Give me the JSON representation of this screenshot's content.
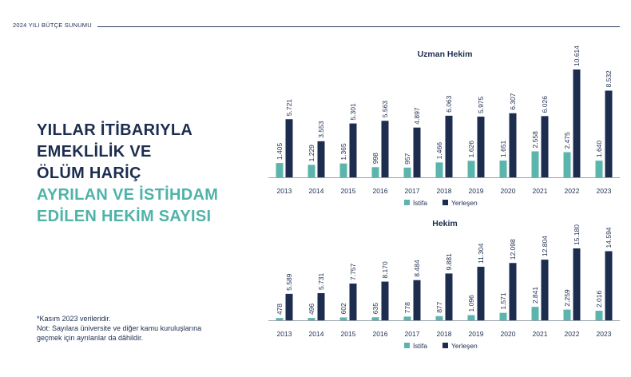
{
  "header": {
    "title": "2024 YILI BÜTÇE SUNUMU"
  },
  "headline": {
    "line1": "YILLAR İTİBARIYLA",
    "line2": "EMEKLİLİK VE",
    "line3": "ÖLÜM HARİÇ",
    "line4": "AYRILAN VE İSTİHDAM",
    "line5": "EDİLEN HEKİM SAYISI"
  },
  "notes": {
    "line1": "*Kasım 2023 verileridir.",
    "line2": "Not: Sayılara üniversite ve diğer kamu kuruluşlarına",
    "line3": "geçmek için ayrılanlar da dâhildir."
  },
  "colors": {
    "istifa": "#5bb5ac",
    "yerlesen": "#1c2d4f",
    "axis": "#9aa3b0"
  },
  "chart_data": [
    {
      "type": "bar",
      "title": "Uzman Hekim",
      "categories": [
        "2013",
        "2014",
        "2015",
        "2016",
        "2017",
        "2018",
        "2019",
        "2020",
        "2021",
        "2022",
        "2023"
      ],
      "series": [
        {
          "name": "İstifa",
          "values": [
            1405,
            1229,
            1365,
            998,
            957,
            1466,
            1626,
            1651,
            2558,
            2475,
            1640
          ],
          "labels": [
            "1.405",
            "1.229",
            "1.365",
            "998",
            "957",
            "1.466",
            "1.626",
            "1.651",
            "2.558",
            "2.475",
            "1.640"
          ]
        },
        {
          "name": "Yerleşen",
          "values": [
            5721,
            3553,
            5301,
            5563,
            4897,
            6063,
            5975,
            6307,
            6026,
            10614,
            8532
          ],
          "labels": [
            "5.721",
            "3.553",
            "5.301",
            "5.563",
            "4.897",
            "6.063",
            "5.975",
            "6.307",
            "6.026",
            "10.614",
            "8.532"
          ]
        }
      ],
      "ylim": [
        0,
        10614
      ],
      "legend": "bottom",
      "grid": false
    },
    {
      "type": "bar",
      "title": "Hekim",
      "categories": [
        "2013",
        "2014",
        "2015",
        "2016",
        "2017",
        "2018",
        "2019",
        "2020",
        "2021",
        "2022",
        "2023"
      ],
      "series": [
        {
          "name": "İstifa",
          "values": [
            478,
            496,
            602,
            635,
            778,
            877,
            1096,
            1571,
            2841,
            2259,
            2016
          ],
          "labels": [
            "478",
            "496",
            "602",
            "635",
            "778",
            "877",
            "1.096",
            "1.571",
            "2.841",
            "2.259",
            "2.016"
          ]
        },
        {
          "name": "Yerleşen",
          "values": [
            5589,
            5731,
            7757,
            8170,
            8484,
            9881,
            11304,
            12098,
            12804,
            15180,
            14594
          ],
          "labels": [
            "5.589",
            "5.731",
            "7.757",
            "8.170",
            "8.484",
            "9.881",
            "11.304",
            "12.098",
            "12.804",
            "15.180",
            "14.594"
          ]
        }
      ],
      "ylim": [
        0,
        15180
      ],
      "legend": "bottom",
      "grid": false
    }
  ]
}
